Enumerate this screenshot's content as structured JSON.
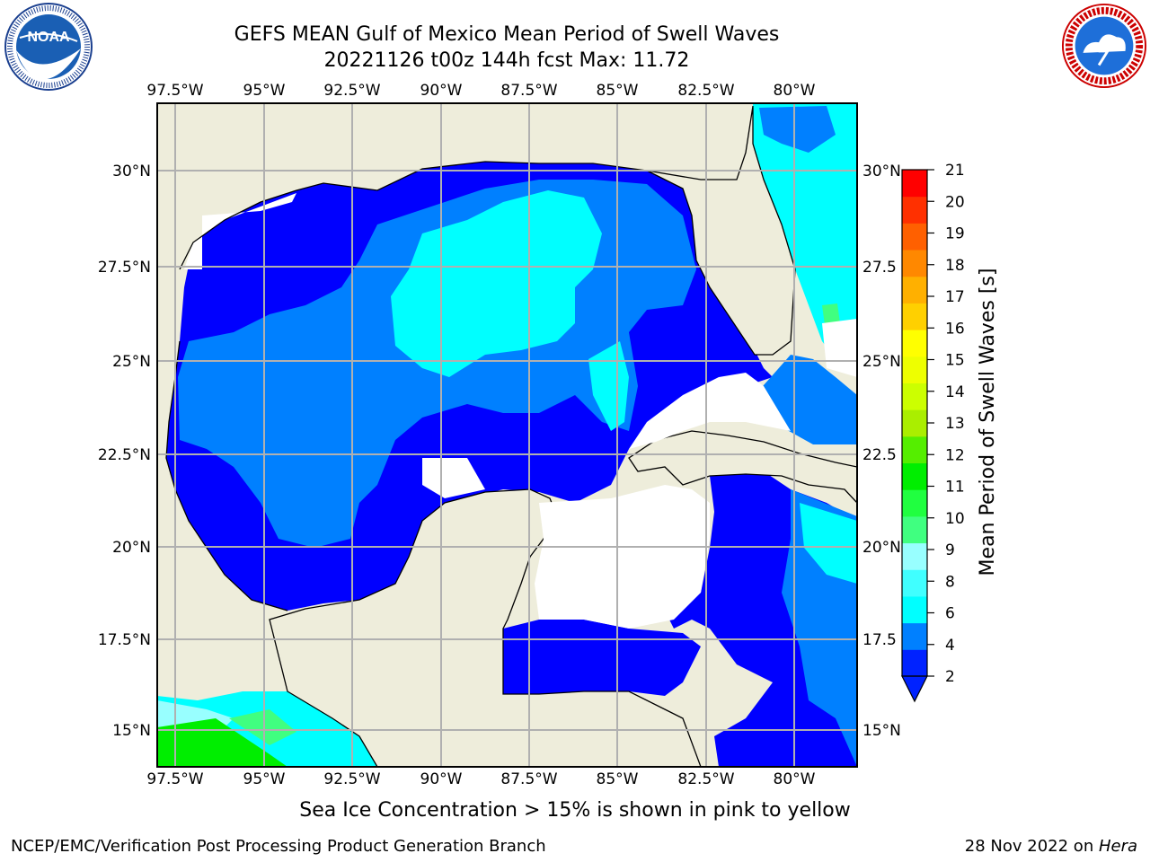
{
  "header": {
    "title": "GEFS MEAN Gulf of Mexico Mean Period of Swell Waves",
    "subtitle": "20221126 t00z 144h fcst   Max: 11.72"
  },
  "logos": {
    "left": {
      "icon": "noaa-logo-icon",
      "text": "NOAA",
      "ring_text": "NATIONAL OCEANIC AND ATMOSPHERIC ADMINISTRATION · U.S. DEPARTMENT OF COMMERCE"
    },
    "right": {
      "icon": "nws-logo-icon",
      "ring_text": "NATIONAL WEATHER SERVICE"
    }
  },
  "map": {
    "lon_labels": [
      "97.5°W",
      "95°W",
      "92.5°W",
      "90°W",
      "87.5°W",
      "85°W",
      "82.5°W",
      "80°W"
    ],
    "lat_labels_left": [
      "30°N",
      "27.5°N",
      "25°N",
      "22.5°N",
      "20°N",
      "17.5°N",
      "15°N"
    ],
    "lat_labels_right": [
      "30°N",
      "27.5",
      "25°N",
      "22.5",
      "20°N",
      "17.5",
      "15°N"
    ],
    "land_color": "#eeeddb",
    "grid_color": "#b0b0b0"
  },
  "colorbar": {
    "label": "Mean Period of Swell Waves [s]",
    "ticks": [
      "2",
      "4",
      "6",
      "8",
      "9",
      "10",
      "11",
      "12",
      "13",
      "14",
      "15",
      "16",
      "17",
      "18",
      "19",
      "20",
      "21"
    ],
    "colors": [
      "#0022ff",
      "#0080ff",
      "#00ffff",
      "#40ffff",
      "#98ffff",
      "#40ff80",
      "#20ff40",
      "#00ee00",
      "#55ee00",
      "#aaee00",
      "#ccff00",
      "#eeff00",
      "#ffff00",
      "#ffd000",
      "#ffb000",
      "#ff8800",
      "#ff6000",
      "#ff3000",
      "#ff0000"
    ]
  },
  "footer": {
    "note": "Sea Ice Concentration > 15% is shown in pink to yellow",
    "credit": "NCEP/EMC/Verification Post Processing Product Generation Branch",
    "date": "28 Nov 2022 on ",
    "host": "Hera"
  }
}
